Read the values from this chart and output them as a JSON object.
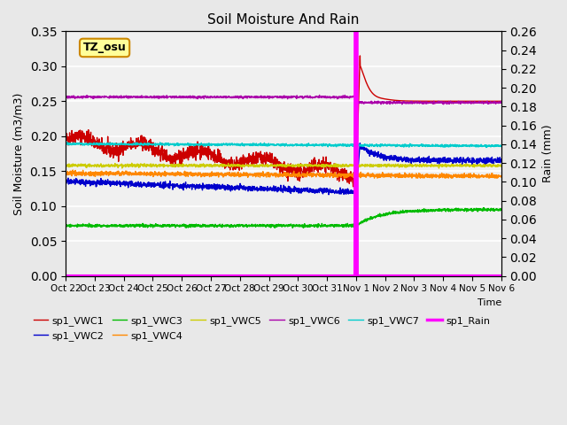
{
  "title": "Soil Moisture And Rain",
  "ylabel_left": "Soil Moisture (m3/m3)",
  "ylabel_right": "Rain (mm)",
  "xlabel": "Time",
  "x_tick_labels": [
    "Oct 22",
    "Oct 23",
    "Oct 24",
    "Oct 25",
    "Oct 26",
    "Oct 27",
    "Oct 28",
    "Oct 29",
    "Oct 30",
    "Oct 31",
    "Nov 1",
    "Nov 2",
    "Nov 3",
    "Nov 4",
    "Nov 5",
    "Nov 6"
  ],
  "ylim_left": [
    0.0,
    0.35
  ],
  "ylim_right": [
    0.0,
    0.26
  ],
  "yticks_left": [
    0.0,
    0.05,
    0.1,
    0.15,
    0.2,
    0.25,
    0.3,
    0.35
  ],
  "yticks_right": [
    0.0,
    0.02,
    0.04,
    0.06,
    0.08,
    0.1,
    0.12,
    0.14,
    0.16,
    0.18,
    0.2,
    0.22,
    0.24,
    0.26
  ],
  "station_label": "TZ_osu",
  "background_color": "#e8e8e8",
  "plot_bg_color": "#f0f0f0",
  "vwc1_color": "#cc0000",
  "vwc2_color": "#0000cc",
  "vwc3_color": "#00bb00",
  "vwc4_color": "#ff8800",
  "vwc5_color": "#cccc00",
  "vwc6_color": "#aa00aa",
  "vwc7_color": "#00cccc",
  "rain_color": "#ff00ff"
}
